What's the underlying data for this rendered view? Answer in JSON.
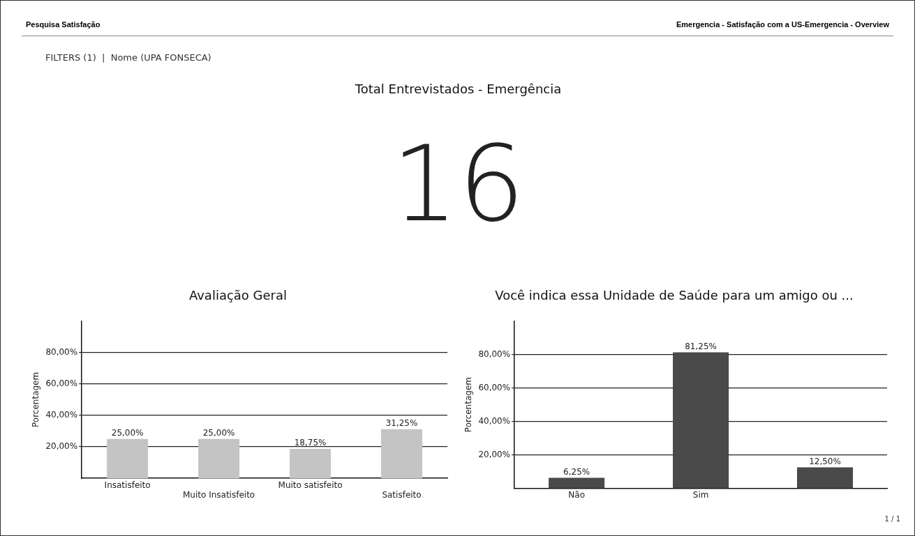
{
  "chart_data": [
    {
      "type": "other",
      "title": "Total Entrevistados - Emergência",
      "annotations": [
        "Pesquisa Satisfação",
        "Emergencia - Satisfação com a US-Emergencia - Overview",
        "FILTERS (1)  |  Nome (UPA FONSECA)",
        "16",
        "1 / 1"
      ]
    },
    {
      "type": "bar",
      "title": "Avaliação Geral",
      "ylabel": "Porcentagem",
      "categories": [
        "Insatisfeito",
        "Muito Insatisfeito",
        "Muito satisfeito",
        "Satisfeito"
      ],
      "values": [
        25,
        25,
        18.75,
        31.25
      ],
      "value_labels": [
        "25,00%",
        "25,00%",
        "18,75%",
        "31,25%"
      ],
      "color": "#c4c4c4",
      "ylim": [
        0,
        100
      ],
      "yticks": [
        {
          "value": 20,
          "label": "20,00%"
        },
        {
          "value": 40,
          "label": "40,00%"
        },
        {
          "value": 60,
          "label": "60,00%"
        },
        {
          "value": 80,
          "label": "80,00%"
        }
      ],
      "grid": "y"
    },
    {
      "type": "bar",
      "title": "Você indica essa Unidade de Saúde para um amigo ou ...",
      "ylabel": "Porcentagem",
      "categories": [
        "Não",
        "Sim",
        null
      ],
      "values": [
        6.25,
        81.25,
        12.5
      ],
      "value_labels": [
        "6,25%",
        "81,25%",
        "12,50%"
      ],
      "color": "#4a4a4a",
      "ylim": [
        0,
        100
      ],
      "yticks": [
        {
          "value": 20,
          "label": "20,00%"
        },
        {
          "value": 40,
          "label": "40,00%"
        },
        {
          "value": 60,
          "label": "60,00%"
        },
        {
          "value": 80,
          "label": "80,00%"
        }
      ],
      "grid": "y"
    }
  ]
}
